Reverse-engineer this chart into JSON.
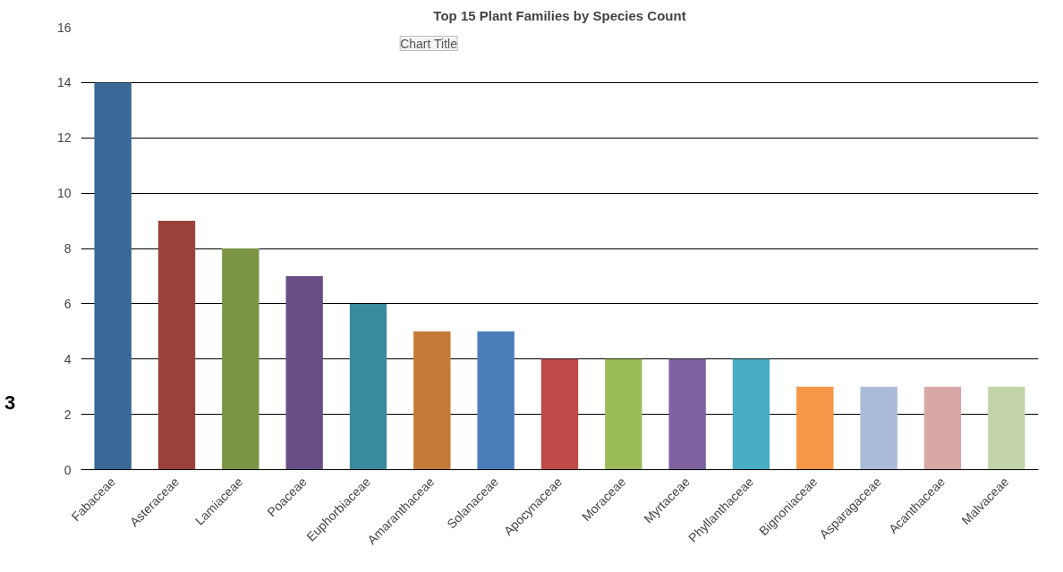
{
  "chart_data": {
    "type": "bar",
    "title": "Top 15 Plant Families by Species Count",
    "categories": [
      "Fabaceae",
      "Asteraceae",
      "Lamiaceae",
      "Poaceae",
      "Euphorbiaceae",
      "Amaranthaceae",
      "Solanaceae",
      "Apocynaceae",
      "Moraceae",
      "Myrtaceae",
      "Phyllanthaceae",
      "Bignoniaceae",
      "Asparagaceae",
      "Acanthaceae",
      "Malvaceae"
    ],
    "values": [
      14,
      9,
      8,
      7,
      6,
      5,
      5,
      4,
      4,
      4,
      4,
      3,
      3,
      3,
      3
    ],
    "colors": [
      "#3a6897",
      "#9a413b",
      "#7b9445",
      "#674f86",
      "#3a8b9d",
      "#c67a37",
      "#4a7ebb",
      "#be4b48",
      "#9bbb59",
      "#7f63a1",
      "#4aacc6",
      "#f79646",
      "#aabbdb",
      "#d8a8a6",
      "#c3d4a9"
    ],
    "ylim": [
      0,
      16
    ],
    "yticks": [
      0,
      2,
      4,
      6,
      8,
      10,
      12,
      14,
      16
    ],
    "grid": "y",
    "annotations": [
      "Chart Title",
      "3"
    ]
  }
}
